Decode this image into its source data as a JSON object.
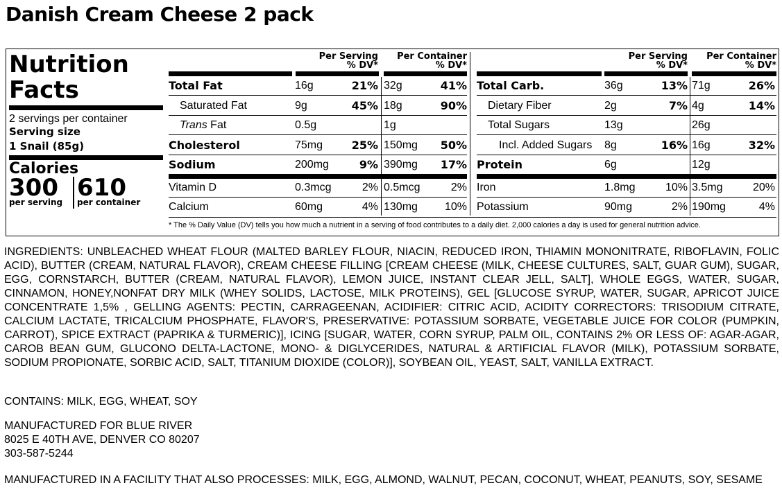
{
  "product": {
    "title": "Danish Cream Cheese 2 pack"
  },
  "nutrition": {
    "heading_line1": "Nutrition",
    "heading_line2": "Facts",
    "servings_per_container": "2 servings per container",
    "serving_size_label": "Serving size",
    "serving_size_value": "1 Snail (85g)",
    "calories_label": "Calories",
    "calories_per_serving": "300",
    "calories_per_container": "610",
    "per_serving_label": "per serving",
    "per_container_label": "per container",
    "col_headers": {
      "per_serving": "Per Serving",
      "per_container": "Per Container",
      "dv": "% DV*"
    },
    "left_rows": [
      {
        "name": "Total Fat",
        "serv": "16g",
        "serv_dv": "21%",
        "cont": "32g",
        "cont_dv": "41%"
      },
      {
        "name": "Saturated Fat",
        "serv": "9g",
        "serv_dv": "45%",
        "cont": "18g",
        "cont_dv": "90%"
      },
      {
        "name_italic": "Trans",
        "name_rest": " Fat",
        "serv": "0.5g",
        "serv_dv": "",
        "cont": "1g",
        "cont_dv": ""
      },
      {
        "name": "Cholesterol",
        "serv": "75mg",
        "serv_dv": "25%",
        "cont": "150mg",
        "cont_dv": "50%"
      },
      {
        "name": "Sodium",
        "serv": "200mg",
        "serv_dv": "9%",
        "cont": "390mg",
        "cont_dv": "17%"
      },
      {
        "name": "Vitamin D",
        "serv": "0.3mcg",
        "serv_dv": "2%",
        "cont": "0.5mcg",
        "cont_dv": "2%"
      },
      {
        "name": "Calcium",
        "serv": "60mg",
        "serv_dv": "4%",
        "cont": "130mg",
        "cont_dv": "10%"
      }
    ],
    "right_rows": [
      {
        "name": "Total Carb.",
        "serv": "36g",
        "serv_dv": "13%",
        "cont": "71g",
        "cont_dv": "26%"
      },
      {
        "name": "Dietary Fiber",
        "serv": "2g",
        "serv_dv": "7%",
        "cont": "4g",
        "cont_dv": "14%"
      },
      {
        "name": "Total Sugars",
        "serv": "13g",
        "serv_dv": "",
        "cont": "26g",
        "cont_dv": ""
      },
      {
        "name": "Incl. Added Sugars",
        "serv": "8g",
        "serv_dv": "16%",
        "cont": "16g",
        "cont_dv": "32%"
      },
      {
        "name": "Protein",
        "serv": "6g",
        "serv_dv": "",
        "cont": "12g",
        "cont_dv": ""
      },
      {
        "name": "Iron",
        "serv": "1.8mg",
        "serv_dv": "10%",
        "cont": "3.5mg",
        "cont_dv": "20%"
      },
      {
        "name": "Potassium",
        "serv": "90mg",
        "serv_dv": "2%",
        "cont": "190mg",
        "cont_dv": "4%"
      }
    ],
    "footnote": "* The % Daily Value (DV) tells you how much a nutrient in a serving of food contributes to a daily diet. 2,000 calories a day is used for general nutrition advice."
  },
  "ingredients": "INGREDIENTS: UNBLEACHED WHEAT FLOUR (MALTED BARLEY FLOUR, NIACIN, REDUCED IRON, THIAMIN MONONITRATE, RIBOFLAVIN, FOLIC ACID), BUTTER (CREAM, NATURAL FLAVOR), CREAM CHEESE FILLING [CREAM CHEESE (MILK, CHEESE CULTURES, SALT, GUAR GUM), SUGAR, EGG, CORNSTARCH, BUTTER (CREAM, NATURAL FLAVOR), LEMON JUICE, INSTANT CLEAR JELL, SALT], WHOLE EGGS, WATER, SUGAR, CINNAMON, HONEY,NONFAT DRY MILK (WHEY SOLIDS, LACTOSE, MILK PROTEINS), GEL [GLUCOSE SYRUP, WATER, SUGAR, APRICOT JUICE CONCENTRATE 1,5% , GELLING AGENTS: PECTIN, CARRAGEENAN, ACIDIFIER: CITRIC ACID, ACIDITY CORRECTORS: TRISODIUM CITRATE, CALCIUM LACTATE, TRICALCIUM PHOSPHATE, FLAVOR'S, PRESERVATIVE: POTASSIUM SORBATE, VEGETABLE JUICE FOR COLOR (PUMPKIN, CARROT), SPICE EXTRACT (PAPRIKA & TURMERIC)], ICING [SUGAR, WATER, CORN SYRUP, PALM OIL, CONTAINS 2% OR LESS OF: AGAR-AGAR, CAROB BEAN GUM, GLUCONO DELTA-LACTONE, MONO- & DIGLYCERIDES, NATURAL & ARTIFICIAL FLAVOR (MILK), POTASSIUM SORBATE, SODIUM PROPIONATE, SORBIC ACID, SALT, TITANIUM DIOXIDE (COLOR)], SOYBEAN OIL, YEAST, SALT, VANILLA EXTRACT.",
  "contains": "CONTAINS: MILK, EGG, WHEAT, SOY",
  "manufacturer": {
    "line1": "MANUFACTURED FOR BLUE RIVER",
    "line2": "8025 E 40TH AVE, DENVER CO 80207",
    "line3": "303-587-5244"
  },
  "facility": "MANUFACTURED IN A FACILITY THAT ALSO PROCESSES: MILK, EGG, ALMOND, WALNUT, PECAN, COCONUT, WHEAT, PEANUTS, SOY, SESAME"
}
